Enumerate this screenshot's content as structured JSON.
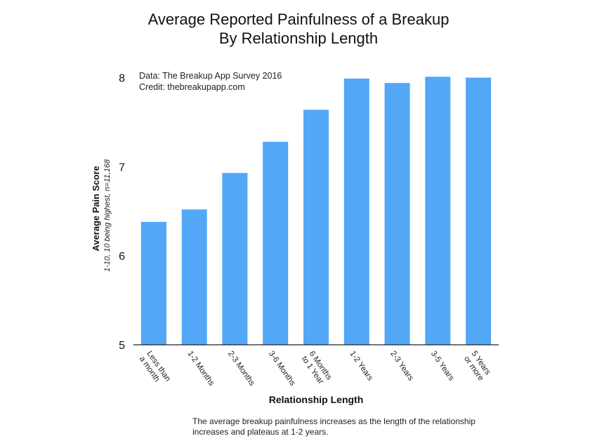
{
  "header": {
    "title_line1": "Average Reported Painfulness of a Breakup",
    "title_line2": "By Relationship Length"
  },
  "note": {
    "line1": "Data: The Breakup App Survey 2016",
    "line2": "Credit: thebreakupapp.com"
  },
  "caption": "The average breakup painfulness increases as the length of the relationship increases and plateaus at 1-2 years.",
  "colors": {
    "bar": "#52a7f7",
    "axis": "#222222"
  },
  "chart_data": {
    "type": "bar",
    "title": "Average Reported Painfulness of a Breakup By Relationship Length",
    "xlabel": "Relationship Length",
    "ylabel": "Average Pain Score",
    "ylabel_sub": "1-10, 10 being highest, n=11,168",
    "categories": [
      [
        "Less than",
        "a month"
      ],
      [
        "1-2 Months"
      ],
      [
        "2-3 Months"
      ],
      [
        "3-6 Months"
      ],
      [
        "6 Months",
        "to 1 Year"
      ],
      [
        "1-2 Years"
      ],
      [
        "2-3 Years"
      ],
      [
        "3-5 Years"
      ],
      [
        "5 Years",
        "or more"
      ]
    ],
    "values": [
      6.38,
      6.52,
      6.93,
      7.28,
      7.64,
      7.99,
      7.94,
      8.01,
      8.0
    ],
    "yticks": [
      5,
      6,
      7,
      8
    ],
    "ylim": [
      5,
      8.06
    ],
    "grid": false,
    "legend": "none"
  }
}
